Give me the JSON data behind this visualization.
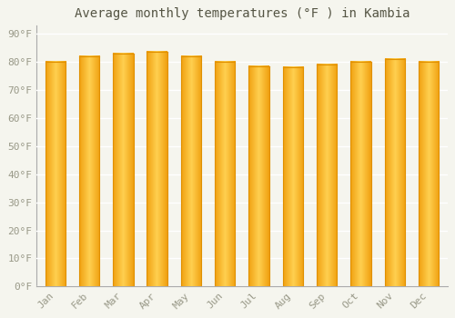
{
  "title": "Average monthly temperatures (°F ) in Kambia",
  "months": [
    "Jan",
    "Feb",
    "Mar",
    "Apr",
    "May",
    "Jun",
    "Jul",
    "Aug",
    "Sep",
    "Oct",
    "Nov",
    "Dec"
  ],
  "values": [
    80,
    82,
    83,
    83.5,
    82,
    80,
    78.5,
    78,
    79,
    80,
    81,
    80
  ],
  "bar_color_left": "#F0A010",
  "bar_color_center": "#FFD050",
  "bar_color_right": "#F0A010",
  "background_color": "#F5F5EE",
  "plot_bg_color": "#F5F5EE",
  "grid_color": "#FFFFFF",
  "yticks": [
    0,
    10,
    20,
    30,
    40,
    50,
    60,
    70,
    80,
    90
  ],
  "ylim": [
    0,
    93
  ],
  "title_fontsize": 10,
  "tick_fontsize": 8,
  "title_color": "#555544",
  "tick_color": "#999988",
  "font_family": "monospace",
  "bar_width": 0.6,
  "figsize": [
    5.0,
    3.5
  ],
  "dpi": 100
}
